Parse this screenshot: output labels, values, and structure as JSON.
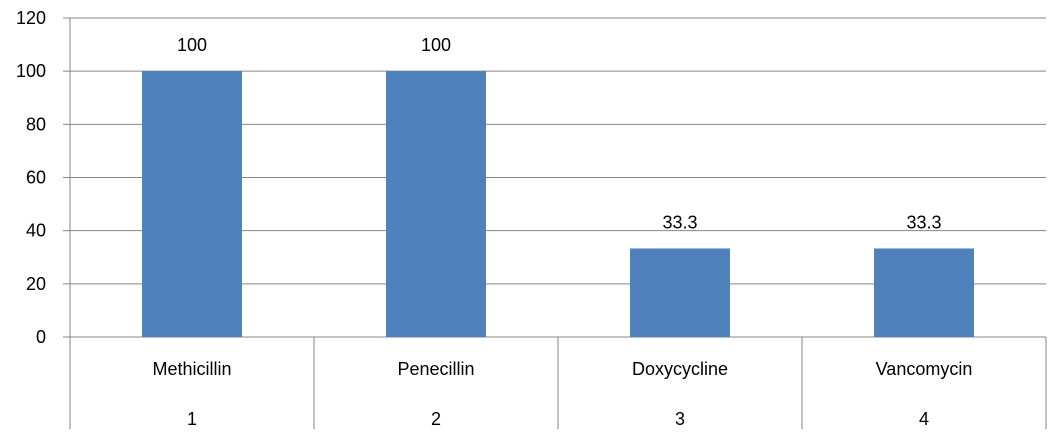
{
  "chart_data": {
    "type": "bar",
    "categories": [
      "Methicillin",
      "Penecillin",
      "Doxycycline",
      "Vancomycin"
    ],
    "category_numbers": [
      "1",
      "2",
      "3",
      "4"
    ],
    "values": [
      100,
      100,
      33.3,
      33.3
    ],
    "data_labels": [
      "100",
      "100",
      "33.3",
      "33.3"
    ],
    "title": "",
    "xlabel": "",
    "ylabel": "",
    "ylim": [
      0,
      120
    ],
    "y_ticks": [
      0,
      20,
      40,
      60,
      80,
      100,
      120
    ],
    "grid": true,
    "legend": "none",
    "bar_color": "#4F81BD",
    "grid_color": "#868686"
  }
}
